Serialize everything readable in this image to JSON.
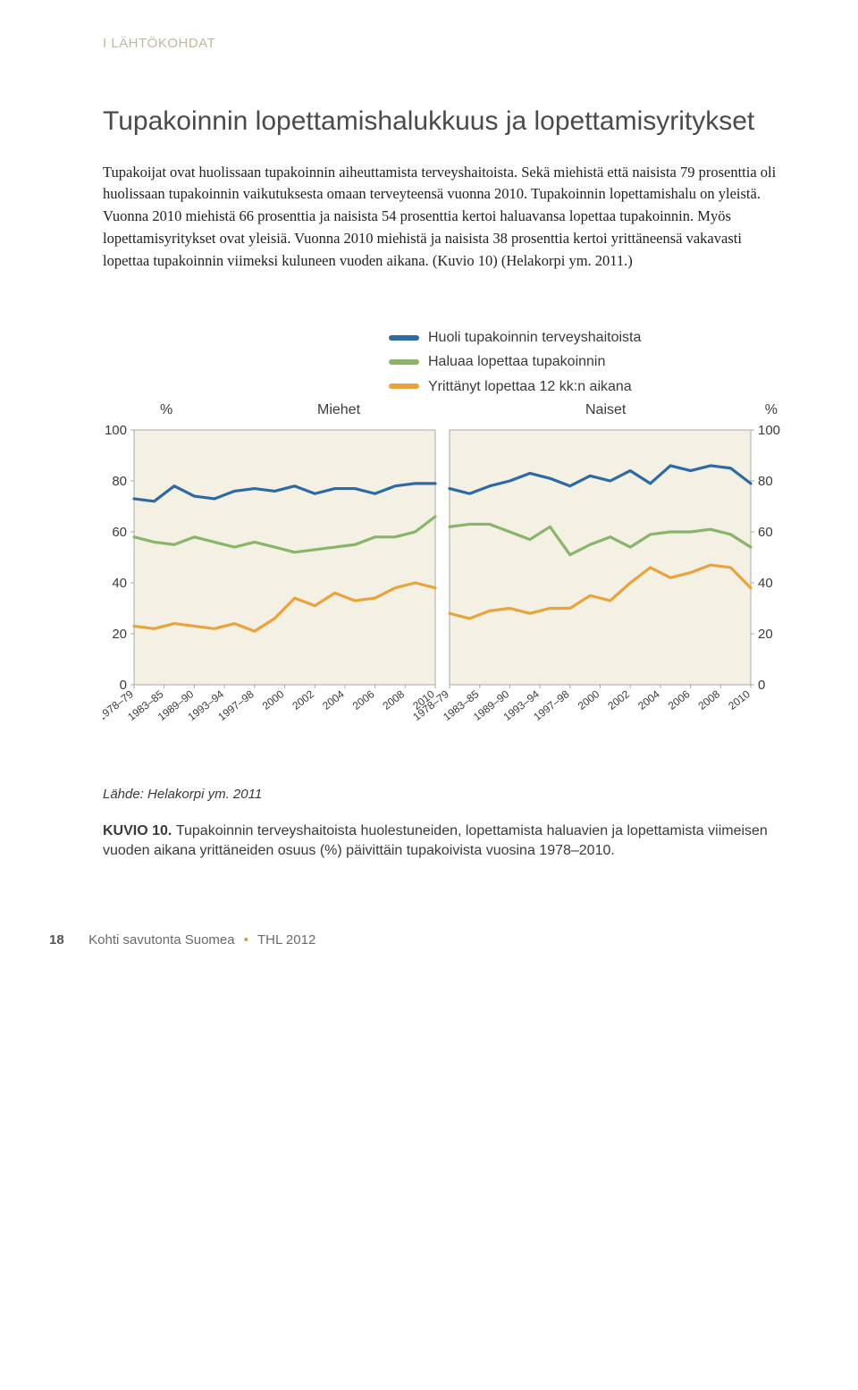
{
  "section_label": "I  LÄHTÖKOHDAT",
  "title": "Tupakoinnin lopettamishalukkuus ja lopettamisyritykset",
  "body_text": "Tupakoijat ovat huolissaan tupakoinnin aiheuttamista terveyshaitoista. Sekä miehistä että naisista 79 prosenttia oli huolissaan tupakoinnin vaikutuksesta omaan terveyteensä vuonna 2010. Tupakoinnin lopettamishalu on yleistä. Vuonna 2010 miehistä 66 prosenttia ja naisista 54 prosenttia kertoi haluavansa lopettaa tupakoinnin. Myös lopettamisyritykset ovat yleisiä. Vuonna 2010 miehistä ja naisista 38 prosenttia kertoi yrittäneensä vakavasti lopettaa tupakoinnin viimeksi kuluneen vuoden aikana. (Kuvio 10) (Helakorpi ym. 2011.)",
  "legend": {
    "series1": {
      "label": "Huoli tupakoinnin terveyshaitoista",
      "color": "#2d6aa3"
    },
    "series2": {
      "label": "Haluaa lopettaa tupakoinnin",
      "color": "#88b56a"
    },
    "series3": {
      "label": "Yrittänyt lopettaa 12 kk:n aikana",
      "color": "#e8a33d"
    }
  },
  "chart": {
    "type": "line",
    "panel_labels": {
      "left": "Miehet",
      "right": "Naiset",
      "pct": "%"
    },
    "ylim": [
      0,
      100
    ],
    "yticks": [
      0,
      20,
      40,
      60,
      80,
      100
    ],
    "ytick_labels": [
      "0",
      "20",
      "40",
      "60",
      "80",
      "100"
    ],
    "background": "#f4f0e3",
    "grid_color": "#a8a8a8",
    "axis_color": "#a8a8a8",
    "line_width": 3.2,
    "x_categories": [
      "1978–79",
      "1983–85",
      "1989–90",
      "1993–94",
      "1997–98",
      "2000",
      "2002",
      "2004",
      "2006",
      "2008",
      "2010"
    ],
    "panels": {
      "miehet": {
        "huoli": [
          73,
          72,
          78,
          74,
          73,
          76,
          77,
          76,
          78,
          75,
          77,
          77,
          75,
          78,
          79,
          79
        ],
        "haluaa": [
          58,
          56,
          55,
          58,
          56,
          54,
          56,
          54,
          52,
          53,
          54,
          55,
          58,
          58,
          60,
          66
        ],
        "yrittanyt": [
          23,
          22,
          24,
          23,
          22,
          24,
          21,
          26,
          34,
          31,
          36,
          33,
          34,
          38,
          40,
          38
        ]
      },
      "naiset": {
        "huoli": [
          77,
          75,
          78,
          80,
          83,
          81,
          78,
          82,
          80,
          84,
          79,
          86,
          84,
          86,
          85,
          79
        ],
        "haluaa": [
          62,
          63,
          63,
          60,
          57,
          62,
          51,
          55,
          58,
          54,
          59,
          60,
          60,
          61,
          59,
          54
        ],
        "yrittanyt": [
          28,
          26,
          29,
          30,
          28,
          30,
          30,
          35,
          33,
          40,
          46,
          42,
          44,
          47,
          46,
          38
        ]
      }
    }
  },
  "source": "Lähde: Helakorpi ym. 2011",
  "caption_label": "KUVIO 10. ",
  "caption_text": "Tupakoinnin terveyshaitoista huolestuneiden, lopettamista haluavien ja lopettamista viimeisen vuoden aikana yrittäneiden osuus (%) päivittäin tupakoivista vuosina 1978–2010.",
  "footer": {
    "page": "18",
    "book": "Kohti savutonta Suomea",
    "pub": "THL  2012"
  }
}
